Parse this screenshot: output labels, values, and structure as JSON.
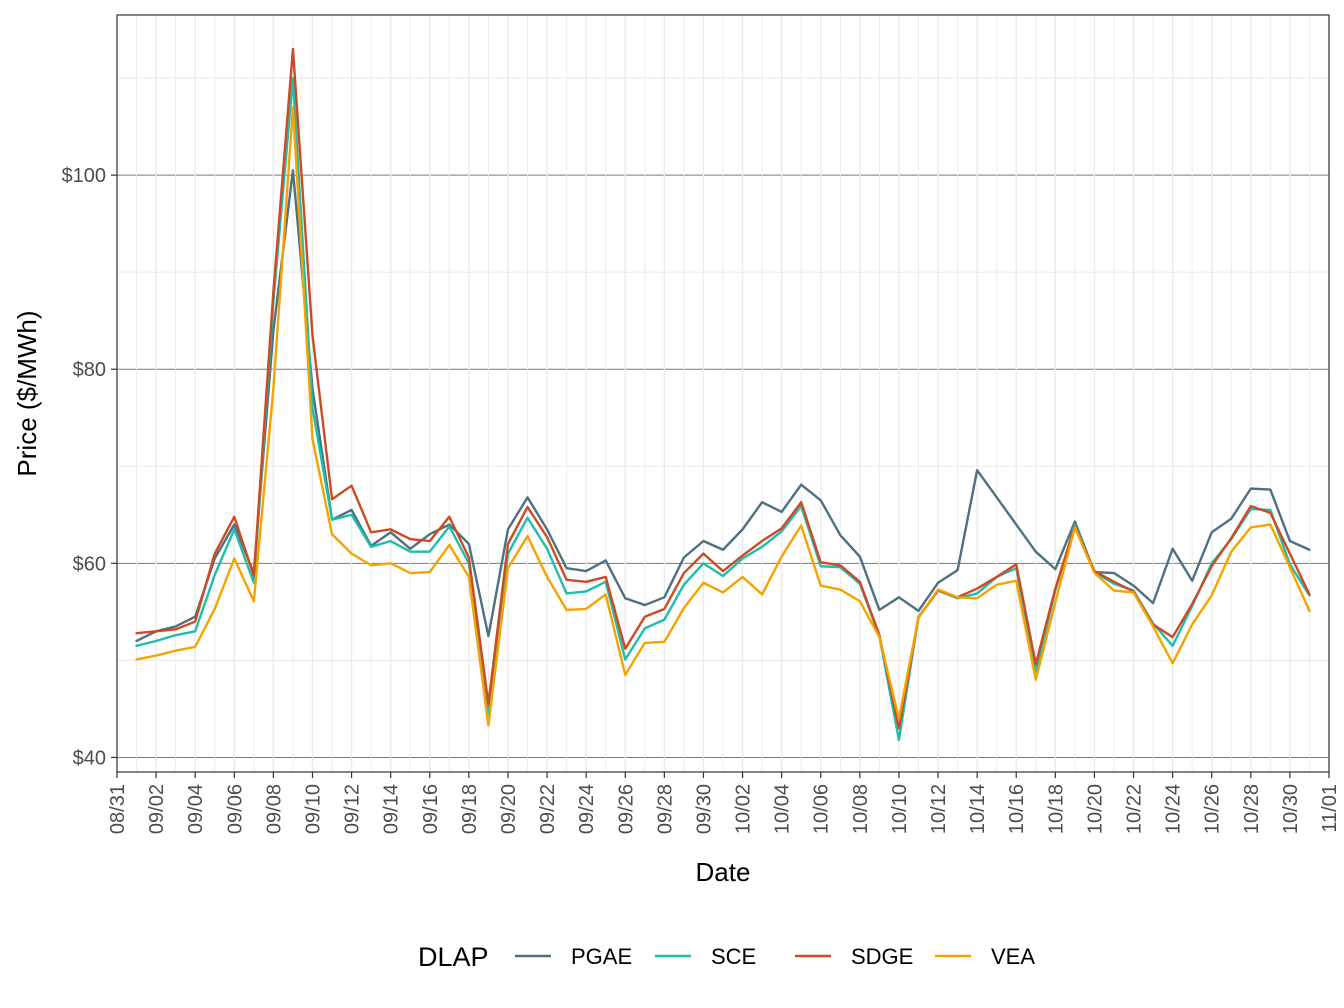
{
  "chart_data": {
    "type": "line",
    "title": "",
    "xlabel": "Date",
    "ylabel": "Price ($/MWh)",
    "ylim": [
      38.5,
      116.5
    ],
    "y_ticks": [
      {
        "value": 40,
        "label": "$40"
      },
      {
        "value": 60,
        "label": "$60"
      },
      {
        "value": 80,
        "label": "$80"
      },
      {
        "value": 100,
        "label": "$100"
      }
    ],
    "x_tick_labels": [
      "08/31",
      "09/02",
      "09/04",
      "09/06",
      "09/08",
      "09/10",
      "09/12",
      "09/14",
      "09/16",
      "09/18",
      "09/20",
      "09/22",
      "09/24",
      "09/26",
      "09/28",
      "09/30",
      "10/02",
      "10/04",
      "10/06",
      "10/08",
      "10/10",
      "10/12",
      "10/14",
      "10/16",
      "10/18",
      "10/20",
      "10/22",
      "10/24",
      "10/26",
      "10/28",
      "10/30",
      "11/01"
    ],
    "x_start_date": "08/31",
    "x_range_days": [
      0,
      62
    ],
    "series_first_day": 1,
    "grid": true,
    "legend": {
      "title": "DLAP",
      "position": "bottom"
    },
    "series": [
      {
        "name": "PGAE",
        "color": "#4e7080",
        "values": [
          52.0,
          53.0,
          53.5,
          54.5,
          60.5,
          64.0,
          59.0,
          84.0,
          100.5,
          78.0,
          64.5,
          65.5,
          61.8,
          63.2,
          61.5,
          63.0,
          64.0,
          62.0,
          52.5,
          63.5,
          66.8,
          63.5,
          59.5,
          59.2,
          60.3,
          56.4,
          55.7,
          56.5,
          60.6,
          62.3,
          61.4,
          63.5,
          66.3,
          65.3,
          68.1,
          66.5,
          62.9,
          60.7,
          55.2,
          56.5,
          55.1,
          58.0,
          59.3,
          69.6,
          66.8,
          64.0,
          61.2,
          59.4,
          64.3,
          59.1,
          59.0,
          57.7,
          55.9,
          61.5,
          58.2,
          63.2,
          64.6,
          67.7,
          67.6,
          62.3,
          61.4
        ]
      },
      {
        "name": "SCE",
        "color": "#1cbfad",
        "values": [
          51.5,
          52.0,
          52.6,
          53.0,
          58.8,
          63.5,
          58.0,
          87.0,
          110.0,
          76.0,
          64.5,
          65.0,
          61.7,
          62.3,
          61.2,
          61.2,
          63.8,
          60.0,
          44.5,
          61.0,
          64.7,
          61.5,
          56.9,
          57.1,
          58.1,
          50.1,
          53.3,
          54.2,
          57.8,
          60.0,
          58.7,
          60.5,
          61.7,
          63.3,
          65.9,
          59.7,
          59.6,
          57.9,
          52.5,
          41.8,
          54.5,
          57.2,
          56.4,
          56.9,
          58.6,
          59.5,
          48.8,
          57.2,
          64.0,
          59.1,
          57.9,
          57.2,
          53.8,
          51.5,
          55.6,
          60.0,
          62.5,
          65.6,
          65.5,
          59.9,
          56.7
        ]
      },
      {
        "name": "SDGE",
        "color": "#cf4a24",
        "values": [
          52.8,
          53.0,
          53.2,
          54.0,
          61.0,
          64.8,
          58.7,
          88.0,
          113.0,
          83.5,
          66.6,
          68.0,
          63.2,
          63.5,
          62.5,
          62.3,
          64.8,
          60.6,
          45.5,
          62.0,
          65.8,
          62.7,
          58.3,
          58.1,
          58.6,
          51.2,
          54.5,
          55.3,
          59.0,
          61.0,
          59.2,
          60.8,
          62.3,
          63.6,
          66.3,
          60.1,
          59.8,
          58.1,
          52.6,
          43.0,
          54.4,
          57.2,
          56.5,
          57.4,
          58.6,
          59.9,
          49.6,
          57.4,
          63.8,
          59.2,
          58.1,
          57.1,
          53.7,
          52.4,
          55.8,
          59.7,
          62.6,
          65.9,
          65.2,
          61.0,
          56.8
        ]
      },
      {
        "name": "VEA",
        "color": "#f5a300",
        "values": [
          50.1,
          50.5,
          51.0,
          51.4,
          55.3,
          60.5,
          56.1,
          78.0,
          107.0,
          72.8,
          63.0,
          61.0,
          59.8,
          60.0,
          59.0,
          59.1,
          61.9,
          58.6,
          43.3,
          59.5,
          62.8,
          58.6,
          55.2,
          55.3,
          56.8,
          48.5,
          51.8,
          51.9,
          55.4,
          58.0,
          57.0,
          58.6,
          56.8,
          60.7,
          63.9,
          57.7,
          57.3,
          56.1,
          52.4,
          44.0,
          54.4,
          57.3,
          56.5,
          56.4,
          57.8,
          58.2,
          48.0,
          56.0,
          63.7,
          59.0,
          57.2,
          57.0,
          53.5,
          49.7,
          53.7,
          56.7,
          61.2,
          63.7,
          64.0,
          59.6,
          55.1
        ]
      }
    ]
  }
}
